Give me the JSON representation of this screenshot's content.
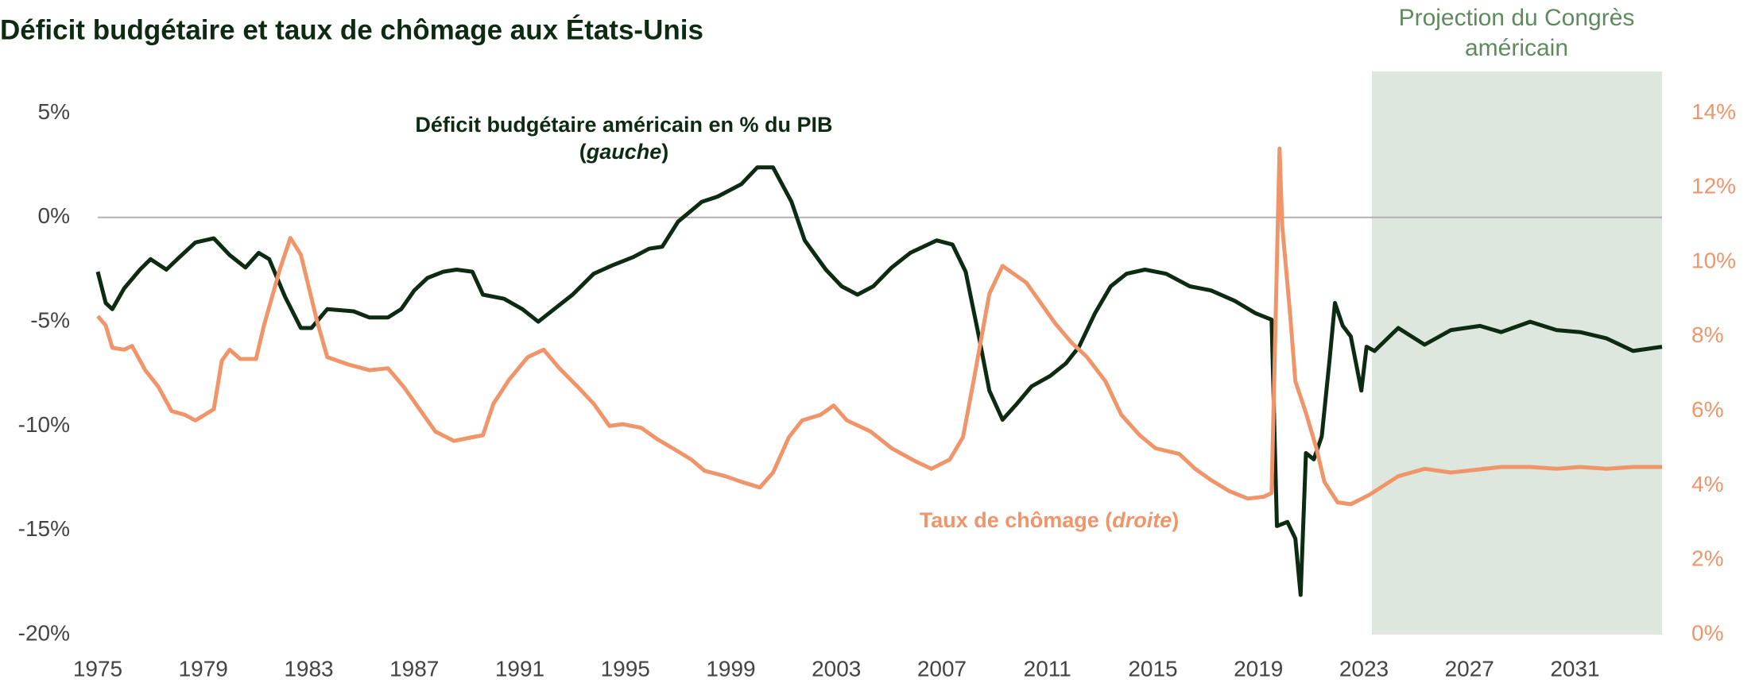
{
  "chart_data": {
    "type": "line",
    "title": "Déficit budgétaire et taux de chômage aux États-Unis",
    "xlim": [
      1975,
      2034.3
    ],
    "xticks": [
      1975,
      1979,
      1983,
      1987,
      1991,
      1995,
      1999,
      2003,
      2007,
      2011,
      2015,
      2019,
      2023,
      2027,
      2031
    ],
    "ylim": [
      -20,
      5
    ],
    "yticks": [
      {
        "value": -20,
        "label": "-20%"
      },
      {
        "value": -15,
        "label": "-15%"
      },
      {
        "value": -10,
        "label": "-10%"
      },
      {
        "value": -5,
        "label": "-5%"
      },
      {
        "value": 0,
        "label": "0%"
      },
      {
        "value": 5,
        "label": "5%"
      }
    ],
    "y2lim": [
      0,
      14
    ],
    "y2ticks": [
      {
        "value": 0,
        "label": "0%"
      },
      {
        "value": 2,
        "label": "2%"
      },
      {
        "value": 4,
        "label": "4%"
      },
      {
        "value": 6,
        "label": "6%"
      },
      {
        "value": 8,
        "label": "8%"
      },
      {
        "value": 10,
        "label": "10%"
      },
      {
        "value": 12,
        "label": "12%"
      },
      {
        "value": 14,
        "label": "14%"
      }
    ],
    "zero_line": true,
    "shaded_region": {
      "label": "Projection du Congrès américain",
      "start": 2023.3,
      "color": "#dde7de"
    },
    "series": [
      {
        "name": "Déficit budgétaire américain en % du PIB",
        "name_italic": "gauche",
        "color": "#0d2b12",
        "axis": "y",
        "x": [
          1975.0,
          1975.3,
          1975.55,
          1976,
          1976.6,
          1977.0,
          1977.6,
          1978.1,
          1978.7,
          1979.4,
          1980.0,
          1980.6,
          1981.1,
          1981.5,
          1982.1,
          1982.7,
          1983.1,
          1983.7,
          1984.7,
          1985.3,
          1986.0,
          1986.5,
          1987.0,
          1987.5,
          1988.1,
          1988.6,
          1989.2,
          1989.6,
          1990.4,
          1991.1,
          1991.7,
          1992.3,
          1993.0,
          1993.8,
          1994.5,
          1995.3,
          1995.9,
          1996.4,
          1997.0,
          1997.9,
          1998.5,
          1999.4,
          2000.0,
          2000.6,
          2001.3,
          2001.8,
          2002.6,
          2003.2,
          2003.8,
          2004.4,
          2005.1,
          2005.8,
          2006.8,
          2007.4,
          2007.9,
          2008.4,
          2008.8,
          2009.3,
          2009.8,
          2010.4,
          2011.1,
          2011.7,
          2012.2,
          2012.8,
          2013.4,
          2014.0,
          2014.7,
          2015.5,
          2016.4,
          2017.2,
          2018.1,
          2018.9,
          2019.5,
          2019.7,
          2020.1,
          2020.4,
          2020.6,
          2020.8,
          2021.1,
          2021.4,
          2021.7,
          2021.9,
          2022.2,
          2022.5,
          2022.9,
          2023.1,
          2023.4,
          2024.3,
          2025.3,
          2026.3,
          2027.4,
          2028.2,
          2029.3,
          2030.3,
          2031.2,
          2032.2,
          2033.2,
          2034.3
        ],
        "values": [
          -2.6,
          -4.1,
          -4.4,
          -3.4,
          -2.5,
          -2.0,
          -2.5,
          -1.9,
          -1.2,
          -1.0,
          -1.8,
          -2.4,
          -1.7,
          -2.0,
          -3.8,
          -5.3,
          -5.3,
          -4.4,
          -4.5,
          -4.8,
          -4.8,
          -4.4,
          -3.5,
          -2.9,
          -2.6,
          -2.5,
          -2.6,
          -3.7,
          -3.9,
          -4.4,
          -5.0,
          -4.4,
          -3.7,
          -2.7,
          -2.3,
          -1.9,
          -1.5,
          -1.4,
          -0.2,
          0.75,
          1.0,
          1.6,
          2.4,
          2.4,
          0.75,
          -1.1,
          -2.5,
          -3.3,
          -3.7,
          -3.3,
          -2.4,
          -1.7,
          -1.1,
          -1.3,
          -2.6,
          -5.7,
          -8.3,
          -9.7,
          -9.0,
          -8.1,
          -7.6,
          -7.0,
          -6.2,
          -4.6,
          -3.3,
          -2.7,
          -2.5,
          -2.7,
          -3.3,
          -3.5,
          -4.0,
          -4.6,
          -4.9,
          -14.8,
          -14.6,
          -15.4,
          -18.1,
          -11.3,
          -11.6,
          -10.5,
          -6.8,
          -4.1,
          -5.2,
          -5.7,
          -8.3,
          -6.2,
          -6.4,
          -5.3,
          -6.1,
          -5.4,
          -5.2,
          -5.5,
          -5.0,
          -5.4,
          -5.5,
          -5.8,
          -6.4,
          -6.2
        ]
      },
      {
        "name": "Taux de chômage",
        "name_italic": "droite",
        "color": "#f0956a",
        "axis": "y2",
        "x": [
          1975.0,
          1975.3,
          1975.55,
          1976,
          1976.3,
          1976.8,
          1977.3,
          1977.8,
          1978.3,
          1978.7,
          1979.4,
          1979.7,
          1980.0,
          1980.4,
          1981.0,
          1981.3,
          1981.9,
          1982.3,
          1982.7,
          1983.3,
          1983.7,
          1984.5,
          1985.3,
          1986.0,
          1986.6,
          1987.3,
          1987.8,
          1988.5,
          1989.2,
          1989.6,
          1990.0,
          1990.6,
          1991.3,
          1991.9,
          1992.5,
          1993.2,
          1993.8,
          1994.4,
          1994.9,
          1995.6,
          1996.2,
          1996.8,
          1997.5,
          1998.0,
          1998.8,
          1999.4,
          2000.1,
          2000.6,
          2001.2,
          2001.7,
          2002.4,
          2002.9,
          2003.4,
          2004.3,
          2005.1,
          2006.0,
          2006.6,
          2007.3,
          2007.8,
          2008.2,
          2008.8,
          2009.3,
          2009.8,
          2010.2,
          2010.6,
          2011.3,
          2011.9,
          2012.5,
          2013.2,
          2013.8,
          2014.5,
          2015.1,
          2016.0,
          2016.6,
          2017.2,
          2017.9,
          2018.6,
          2019.2,
          2019.5,
          2019.8,
          2019.9,
          2020.2,
          2020.4,
          2020.8,
          2021.2,
          2021.5,
          2022.0,
          2022.5,
          2023.2,
          2024.3,
          2025.3,
          2026.3,
          2028.2,
          2029.3,
          2030.3,
          2031.2,
          2032.2,
          2033.2,
          2034.3
        ],
        "values": [
          8.55,
          8.3,
          7.7,
          7.65,
          7.75,
          7.1,
          6.65,
          6.0,
          5.9,
          5.75,
          6.05,
          7.35,
          7.65,
          7.4,
          7.4,
          8.3,
          9.8,
          10.65,
          10.2,
          8.45,
          7.45,
          7.25,
          7.1,
          7.15,
          6.65,
          5.95,
          5.45,
          5.2,
          5.3,
          5.35,
          6.2,
          6.85,
          7.45,
          7.65,
          7.15,
          6.65,
          6.2,
          5.6,
          5.65,
          5.55,
          5.25,
          5.0,
          4.7,
          4.4,
          4.25,
          4.1,
          3.95,
          4.35,
          5.3,
          5.75,
          5.9,
          6.15,
          5.75,
          5.45,
          5.0,
          4.65,
          4.45,
          4.7,
          5.3,
          6.8,
          9.15,
          9.9,
          9.65,
          9.45,
          9.05,
          8.35,
          7.85,
          7.45,
          6.8,
          5.9,
          5.35,
          5.0,
          4.85,
          4.45,
          4.15,
          3.85,
          3.65,
          3.7,
          3.8,
          13.05,
          11.0,
          8.6,
          6.8,
          5.95,
          5.0,
          4.1,
          3.55,
          3.5,
          3.75,
          4.25,
          4.45,
          4.35,
          4.5,
          4.5,
          4.45,
          4.5,
          4.45,
          4.5,
          4.5
        ]
      }
    ]
  }
}
